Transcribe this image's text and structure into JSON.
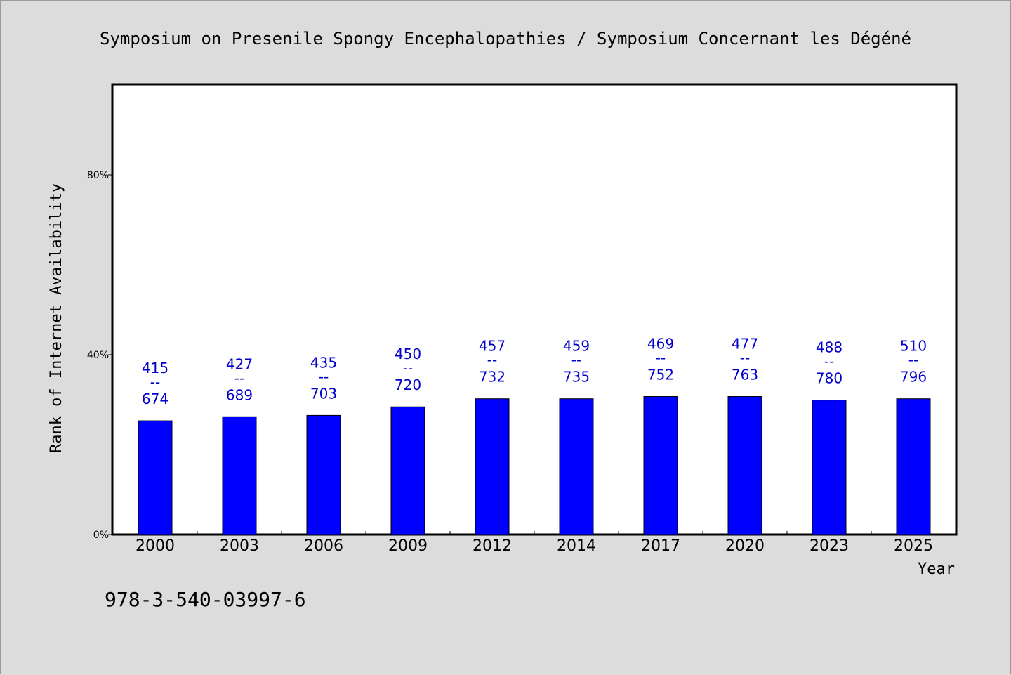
{
  "page": {
    "background": "#dcdcdc",
    "footer_code": "978-3-540-03997-6"
  },
  "chart_data": {
    "type": "bar",
    "title": "Symposium on Presenile Spongy Encephalopathies / Symposium Concernant les Dégéné",
    "xlabel": "Year",
    "ylabel": "Rank of Internet Availability",
    "categories": [
      "2000",
      "2003",
      "2006",
      "2009",
      "2012",
      "2014",
      "2017",
      "2020",
      "2023",
      "2025"
    ],
    "values": [
      0.253,
      0.262,
      0.265,
      0.284,
      0.302,
      0.302,
      0.307,
      0.307,
      0.299,
      0.302
    ],
    "labels_top": [
      "415",
      "427",
      "435",
      "450",
      "457",
      "459",
      "469",
      "477",
      "488",
      "510"
    ],
    "labels_separator": "--",
    "labels_bottom": [
      "674",
      "689",
      "703",
      "720",
      "732",
      "735",
      "752",
      "763",
      "780",
      "796"
    ],
    "ylim": [
      0,
      1
    ],
    "yticks": [
      0,
      0.4,
      0.8
    ],
    "ytick_labels": [
      "0%",
      "40%",
      "80%"
    ],
    "bar_color": "#0000ff",
    "label_color": "#0000cc",
    "grid": false,
    "legend": "none"
  }
}
